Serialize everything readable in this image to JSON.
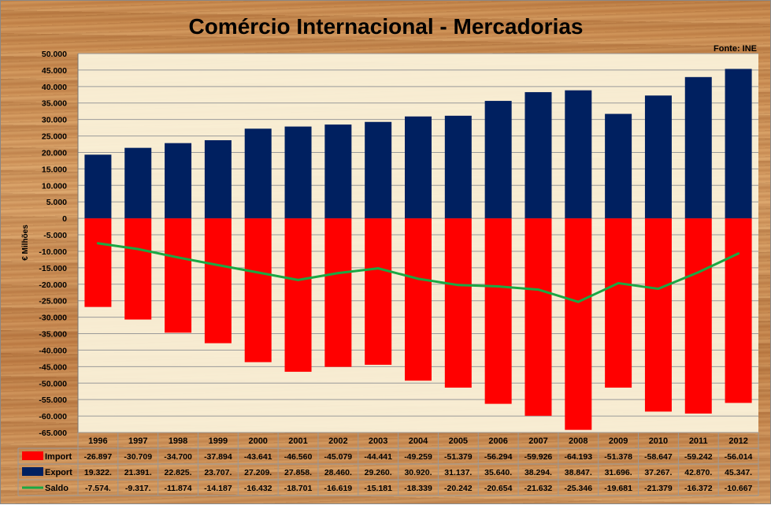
{
  "chart_data": {
    "type": "bar",
    "title": "Comércio Internacional - Mercadorias",
    "source": "Fonte: INE",
    "ylabel": "€ Milhões",
    "xlabel": "",
    "ylim": [
      -65000,
      50000
    ],
    "yticks": [
      "50.000",
      "45.000",
      "40.000",
      "35.000",
      "30.000",
      "25.000",
      "20.000",
      "15.000",
      "10.000",
      "5.000",
      "0",
      "-5.000",
      "-10.000",
      "-15.000",
      "-20.000",
      "-25.000",
      "-30.000",
      "-35.000",
      "-40.000",
      "-45.000",
      "-50.000",
      "-55.000",
      "-60.000",
      "-65.000"
    ],
    "grid": true,
    "categories": [
      "1996",
      "1997",
      "1998",
      "1999",
      "2000",
      "2001",
      "2002",
      "2003",
      "2004",
      "2005",
      "2006",
      "2007",
      "2008",
      "2009",
      "2010",
      "2011",
      "2012"
    ],
    "series": [
      {
        "name": "Import",
        "type": "bar",
        "color": "#ff0000",
        "values": [
          -26897,
          -30709,
          -34700,
          -37894,
          -43641,
          -46560,
          -45079,
          -44441,
          -49259,
          -51379,
          -56294,
          -59926,
          -64193,
          -51378,
          -58647,
          -59242,
          -56014
        ],
        "labels": [
          "-26.897",
          "-30.709",
          "-34.700",
          "-37.894",
          "-43.641",
          "-46.560",
          "-45.079",
          "-44.441",
          "-49.259",
          "-51.379",
          "-56.294",
          "-59.926",
          "-64.193",
          "-51.378",
          "-58.647",
          "-59.242",
          "-56.014"
        ]
      },
      {
        "name": "Export",
        "type": "bar",
        "color": "#002060",
        "values": [
          19322,
          21391,
          22825,
          23707,
          27209,
          27858,
          28460,
          29260,
          30920,
          31137,
          35640,
          38294,
          38847,
          31696,
          37267,
          42870,
          45347
        ],
        "labels": [
          "19.322.",
          "21.391.",
          "22.825.",
          "23.707.",
          "27.209.",
          "27.858.",
          "28.460.",
          "29.260.",
          "30.920.",
          "31.137.",
          "35.640.",
          "38.294.",
          "38.847.",
          "31.696.",
          "37.267.",
          "42.870.",
          "45.347."
        ]
      },
      {
        "name": "Saldo",
        "type": "line",
        "color": "#1aa843",
        "values": [
          -7574,
          -9317,
          -11874,
          -14187,
          -16432,
          -18701,
          -16619,
          -15181,
          -18339,
          -20242,
          -20654,
          -21632,
          -25346,
          -19681,
          -21379,
          -16372,
          -10667
        ],
        "labels": [
          "-7.574.",
          "-9.317.",
          "-11.874",
          "-14.187",
          "-16.432",
          "-18.701",
          "-16.619",
          "-15.181",
          "-18.339",
          "-20.242",
          "-20.654",
          "-21.632",
          "-25.346",
          "-19.681",
          "-21.379",
          "-16.372",
          "-10.667"
        ]
      }
    ]
  }
}
